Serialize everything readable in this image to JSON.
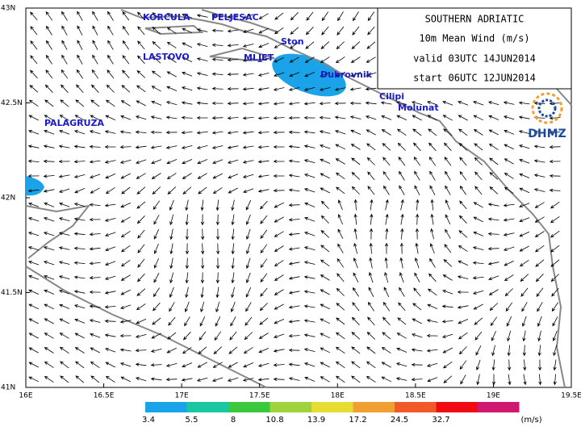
{
  "title_box": {
    "lines": [
      "SOUTHERN ADRIATIC",
      "10m Mean Wind (m/s)",
      "valid 03UTC 14JUN2014",
      "start 06UTC 12JUN2014"
    ]
  },
  "places": [
    "KORCULA",
    "PELJESAC",
    "Ston",
    "LASTOVO",
    "MLJET",
    "Dubrovnik",
    "Cilipi",
    "Molunat",
    "PALAGRUZA"
  ],
  "lat_ticks": [
    {
      "value": 41,
      "label": "41N"
    },
    {
      "value": 41.5,
      "label": "41.5N"
    },
    {
      "value": 42,
      "label": "42N"
    },
    {
      "value": 42.5,
      "label": "42.5N"
    },
    {
      "value": 43,
      "label": "43N"
    }
  ],
  "lon_ticks": [
    {
      "value": 16,
      "label": "16E"
    },
    {
      "value": 16.5,
      "label": "16.5E"
    },
    {
      "value": 17,
      "label": "17E"
    },
    {
      "value": 17.5,
      "label": "17.5E"
    },
    {
      "value": 18,
      "label": "18E"
    },
    {
      "value": 18.5,
      "label": "18.5E"
    },
    {
      "value": 19,
      "label": "19E"
    },
    {
      "value": 19.5,
      "label": "19.5E"
    }
  ],
  "colorbar": {
    "labels": [
      3.4,
      5.5,
      8,
      10.8,
      13.9,
      17.2,
      24.5,
      32.7
    ],
    "colors": [
      "#1aa3e8",
      "#19c8a0",
      "#3cc83c",
      "#a0d23c",
      "#e6dc32",
      "#f0a030",
      "#f05a28",
      "#f00a14",
      "#d01870"
    ],
    "unit": "(m/s)"
  },
  "logo": "DHMZ"
}
